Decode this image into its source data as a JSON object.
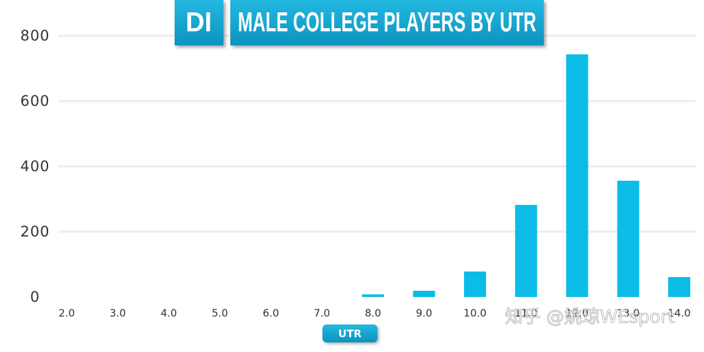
{
  "chart_data": {
    "type": "bar",
    "title_badge": "DI",
    "title": "MALE COLLEGE PLAYERS BY UTR",
    "x_label": "UTR",
    "watermark": "知乎 @姚琼WEsport",
    "categories": [
      "2.0",
      "3.0",
      "4.0",
      "5.0",
      "6.0",
      "7.0",
      "8.0",
      "9.0",
      "10.0",
      "11.0",
      "12.0",
      "13.0",
      "14.0"
    ],
    "values": [
      0,
      0,
      0,
      0,
      0,
      0,
      8,
      19,
      78,
      282,
      743,
      356,
      61
    ],
    "color": "#0bbde6",
    "ylim": [
      0,
      800
    ],
    "yticks": [
      0,
      200,
      400,
      600,
      800
    ],
    "grid": true
  }
}
